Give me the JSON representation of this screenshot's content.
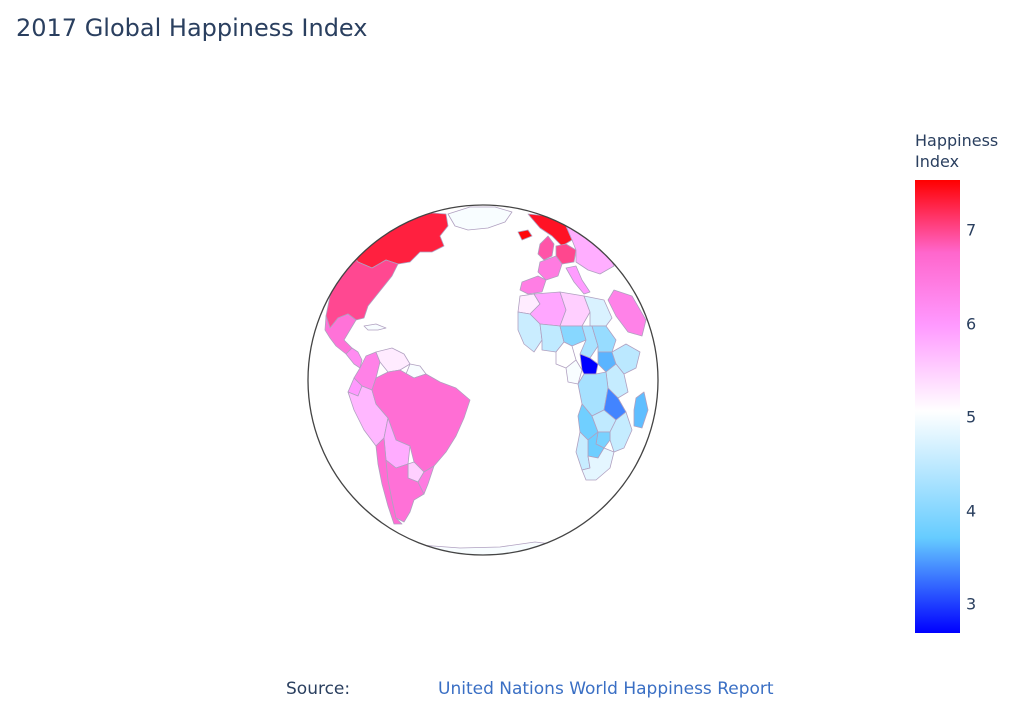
{
  "title": "2017 Global Happiness Index",
  "colorbar": {
    "title_line1": "Happiness",
    "title_line2": "Index",
    "min": 2.69,
    "max": 7.54,
    "ticks": [
      "3",
      "4",
      "5",
      "6",
      "7"
    ],
    "tick_values": [
      3,
      4,
      5,
      6,
      7
    ],
    "colorscale": [
      "#0000ff",
      "#66ccff",
      "#ffffff",
      "#ff99ff",
      "#ff66cc",
      "#ff0000"
    ]
  },
  "source": {
    "label": "Source:",
    "link_text": "United Nations World Happiness Report"
  },
  "regions": [
    {
      "id": "canada",
      "value": 7.3
    },
    {
      "id": "usa",
      "value": 6.99
    },
    {
      "id": "mexico",
      "value": 6.58
    },
    {
      "id": "greenland",
      "value": 5.0
    },
    {
      "id": "central-america",
      "value": 6.2
    },
    {
      "id": "caribbean",
      "value": 5.0
    },
    {
      "id": "colombia",
      "value": 6.36
    },
    {
      "id": "venezuela",
      "value": 5.25
    },
    {
      "id": "guyana",
      "value": 5.0
    },
    {
      "id": "ecuador",
      "value": 6.0
    },
    {
      "id": "peru",
      "value": 5.72
    },
    {
      "id": "brazil",
      "value": 6.64
    },
    {
      "id": "bolivia",
      "value": 5.82
    },
    {
      "id": "paraguay",
      "value": 5.49
    },
    {
      "id": "chile",
      "value": 6.65
    },
    {
      "id": "argentina",
      "value": 6.6
    },
    {
      "id": "uruguay",
      "value": 6.45
    },
    {
      "id": "iceland",
      "value": 7.5
    },
    {
      "id": "uk-ireland",
      "value": 6.9
    },
    {
      "id": "scandinavia",
      "value": 7.4
    },
    {
      "id": "france",
      "value": 6.44
    },
    {
      "id": "spain",
      "value": 6.4
    },
    {
      "id": "italy",
      "value": 5.96
    },
    {
      "id": "germany-benelux",
      "value": 7.0
    },
    {
      "id": "eastern-europe",
      "value": 5.8
    },
    {
      "id": "morocco",
      "value": 5.24
    },
    {
      "id": "algeria",
      "value": 5.87
    },
    {
      "id": "libya",
      "value": 5.5
    },
    {
      "id": "egypt",
      "value": 4.73
    },
    {
      "id": "saudi-arabia",
      "value": 6.34
    },
    {
      "id": "west-africa",
      "value": 4.6
    },
    {
      "id": "sahel",
      "value": 4.5
    },
    {
      "id": "niger",
      "value": 4.0
    },
    {
      "id": "chad",
      "value": 4.3
    },
    {
      "id": "sudan",
      "value": 4.14
    },
    {
      "id": "nigeria",
      "value": 5.07
    },
    {
      "id": "cameroon",
      "value": 5.0
    },
    {
      "id": "central-african-republic",
      "value": 2.69
    },
    {
      "id": "south-sudan",
      "value": 3.59
    },
    {
      "id": "ethiopia",
      "value": 4.46
    },
    {
      "id": "kenya",
      "value": 4.55
    },
    {
      "id": "congo",
      "value": 4.28
    },
    {
      "id": "tanzania",
      "value": 3.35
    },
    {
      "id": "angola",
      "value": 3.8
    },
    {
      "id": "zambia",
      "value": 4.51
    },
    {
      "id": "mozambique",
      "value": 4.55
    },
    {
      "id": "zimbabwe",
      "value": 3.88
    },
    {
      "id": "botswana",
      "value": 3.77
    },
    {
      "id": "namibia",
      "value": 4.57
    },
    {
      "id": "south-africa",
      "value": 4.83
    },
    {
      "id": "madagascar",
      "value": 3.64
    },
    {
      "id": "antarctica",
      "value": 5.0
    }
  ]
}
